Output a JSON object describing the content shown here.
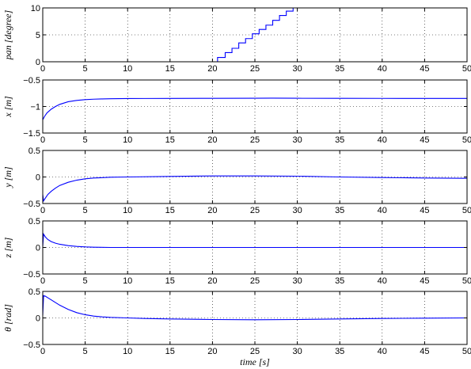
{
  "chart_data": [
    {
      "type": "line",
      "ylabel": "pan [degree]",
      "xlabel": "",
      "xlim": [
        0,
        50
      ],
      "ylim": [
        0,
        10
      ],
      "xticks": [
        "0",
        "5",
        "10",
        "15",
        "20",
        "25",
        "30",
        "35",
        "40",
        "45",
        "50"
      ],
      "yticks": [
        "0",
        "5",
        "10"
      ],
      "grid": true,
      "color": "#0000ff",
      "series": [
        {
          "x": [
            0,
            20.6,
            20.6,
            21.5,
            21.5,
            22.3,
            22.3,
            23.1,
            23.1,
            23.9,
            23.9,
            24.7,
            24.7,
            25.5,
            25.5,
            26.3,
            26.3,
            27.1,
            27.1,
            27.9,
            27.9,
            28.7,
            28.7,
            29.5,
            29.5,
            30,
            30,
            50
          ],
          "y": [
            0,
            0,
            0.8,
            0.8,
            1.7,
            1.7,
            2.5,
            2.5,
            3.5,
            3.5,
            4.3,
            4.3,
            5.2,
            5.2,
            6,
            6,
            6.8,
            6.8,
            7.7,
            7.7,
            8.6,
            8.6,
            9.4,
            9.4,
            10,
            10,
            10,
            10
          ]
        }
      ]
    },
    {
      "type": "line",
      "ylabel": "x [m]",
      "xlabel": "",
      "xlim": [
        0,
        50
      ],
      "ylim": [
        -1.5,
        -0.5
      ],
      "xticks": [
        "0",
        "5",
        "10",
        "15",
        "20",
        "25",
        "30",
        "35",
        "40",
        "45",
        "50"
      ],
      "yticks": [
        "-1.5",
        "-1",
        "-0.5"
      ],
      "grid": true,
      "color": "#0000ff",
      "series": [
        {
          "x": [
            0,
            0.2,
            0.5,
            1,
            1.5,
            2,
            3,
            4,
            5,
            6,
            7,
            8,
            10,
            12,
            15,
            20,
            25,
            27,
            30,
            35,
            40,
            45,
            50
          ],
          "y": [
            -1.25,
            -1.19,
            -1.12,
            -1.05,
            -1.0,
            -0.96,
            -0.91,
            -0.885,
            -0.87,
            -0.862,
            -0.857,
            -0.853,
            -0.85,
            -0.849,
            -0.848,
            -0.846,
            -0.845,
            -0.843,
            -0.845,
            -0.846,
            -0.847,
            -0.848,
            -0.848
          ]
        }
      ]
    },
    {
      "type": "line",
      "ylabel": "y [m]",
      "xlabel": "",
      "xlim": [
        0,
        50
      ],
      "ylim": [
        -0.5,
        0.5
      ],
      "xticks": [
        "0",
        "5",
        "10",
        "15",
        "20",
        "25",
        "30",
        "35",
        "40",
        "45",
        "50"
      ],
      "yticks": [
        "-0.5",
        "0",
        "0.5"
      ],
      "grid": true,
      "color": "#0000ff",
      "series": [
        {
          "x": [
            0,
            0.1,
            0.3,
            0.6,
            1,
            1.5,
            2,
            3,
            4,
            5,
            6,
            8,
            10,
            15,
            20,
            25,
            30,
            35,
            40,
            45,
            50
          ],
          "y": [
            -0.33,
            -0.45,
            -0.4,
            -0.33,
            -0.27,
            -0.21,
            -0.16,
            -0.1,
            -0.06,
            -0.035,
            -0.02,
            -0.005,
            0.0,
            0.01,
            0.02,
            0.02,
            0.015,
            0.0,
            -0.01,
            -0.02,
            -0.025
          ]
        }
      ]
    },
    {
      "type": "line",
      "ylabel": "z [m]",
      "xlabel": "",
      "xlim": [
        0,
        50
      ],
      "ylim": [
        -0.5,
        0.5
      ],
      "xticks": [
        "0",
        "5",
        "10",
        "15",
        "20",
        "25",
        "30",
        "35",
        "40",
        "45",
        "50"
      ],
      "yticks": [
        "-0.5",
        "0",
        "0.5"
      ],
      "grid": true,
      "color": "#0000ff",
      "series": [
        {
          "x": [
            0,
            0.1,
            0.3,
            0.6,
            1,
            1.5,
            2,
            3,
            4,
            5,
            6,
            8,
            10,
            15,
            20,
            30,
            40,
            50
          ],
          "y": [
            0.02,
            0.25,
            0.2,
            0.15,
            0.11,
            0.08,
            0.06,
            0.035,
            0.02,
            0.01,
            0.005,
            0.0,
            0.0,
            0.0,
            0.0,
            0.0,
            0.0,
            0.0
          ]
        }
      ]
    },
    {
      "type": "line",
      "ylabel": "θ [rad]",
      "xlabel": "time [s]",
      "xlim": [
        0,
        50
      ],
      "ylim": [
        -0.5,
        0.5
      ],
      "xticks": [
        "0",
        "5",
        "10",
        "15",
        "20",
        "25",
        "30",
        "35",
        "40",
        "45",
        "50"
      ],
      "yticks": [
        "-0.5",
        "0",
        "0.5"
      ],
      "grid": true,
      "color": "#0000ff",
      "series": [
        {
          "x": [
            0,
            0.1,
            0.3,
            0.6,
            1,
            1.5,
            2,
            3,
            4,
            5,
            6,
            7,
            8,
            10,
            12,
            15,
            20,
            25,
            30,
            35,
            40,
            45,
            50
          ],
          "y": [
            0.05,
            0.42,
            0.41,
            0.38,
            0.34,
            0.29,
            0.24,
            0.16,
            0.1,
            0.06,
            0.035,
            0.02,
            0.01,
            0.0,
            -0.01,
            -0.02,
            -0.03,
            -0.035,
            -0.03,
            -0.02,
            -0.01,
            -0.005,
            0.0
          ]
        }
      ]
    }
  ]
}
